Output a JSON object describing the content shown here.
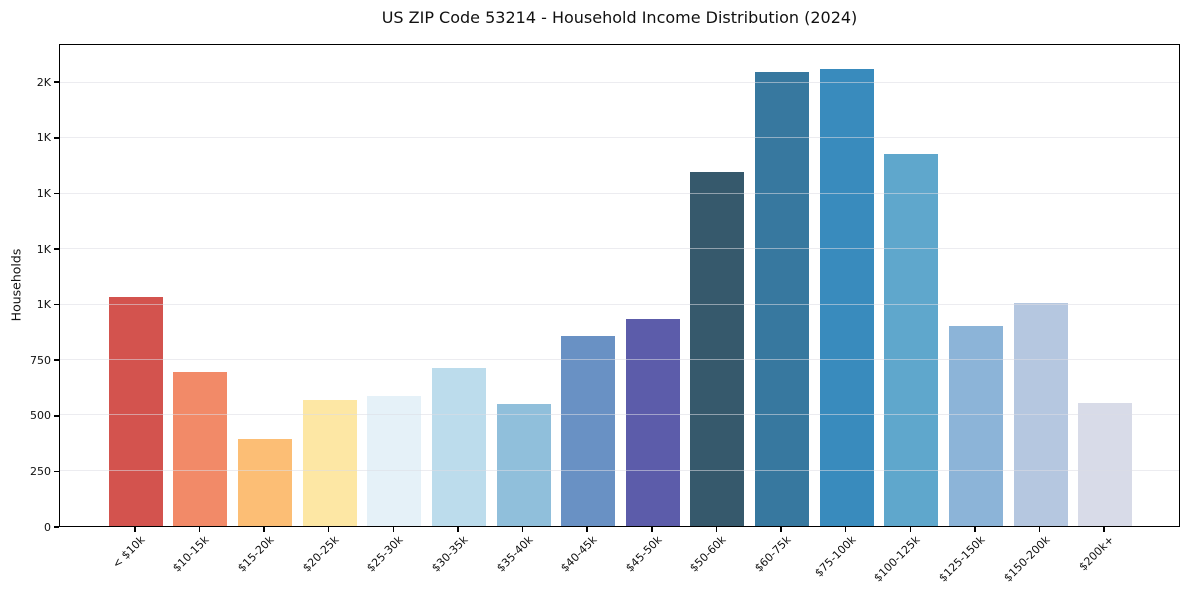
{
  "chart_data": {
    "type": "bar",
    "title": "US ZIP Code 53214 - Household Income Distribution (2024)",
    "xlabel": "",
    "ylabel": "Households",
    "categories": [
      "< $10k",
      "$10-15k",
      "$15-20k",
      "$20-25k",
      "$25-30k",
      "$30-35k",
      "$35-40k",
      "$40-45k",
      "$45-50k",
      "$50-60k",
      "$60-75k",
      "$75-100k",
      "$100-125k",
      "$125-150k",
      "$150-200k",
      "$200k+"
    ],
    "values": [
      1035,
      695,
      395,
      570,
      585,
      715,
      550,
      860,
      935,
      1600,
      2050,
      2065,
      1680,
      905,
      1005,
      555
    ],
    "bar_colors": [
      "#d3534e",
      "#f28a68",
      "#fcbe75",
      "#fde7a4",
      "#e5f1f8",
      "#bcdcec",
      "#90bfdb",
      "#6991c4",
      "#5c5caa",
      "#36596c",
      "#37789f",
      "#398bbd",
      "#5fa7cc",
      "#8cb4d8",
      "#b5c7e0",
      "#d8dbe8"
    ],
    "ylim": [
      0,
      2172
    ],
    "yticks": [
      {
        "value": 0,
        "label": "0"
      },
      {
        "value": 250,
        "label": "250"
      },
      {
        "value": 500,
        "label": "500"
      },
      {
        "value": 750,
        "label": "750"
      },
      {
        "value": 1000,
        "label": "1K"
      },
      {
        "value": 1250,
        "label": "1K"
      },
      {
        "value": 1500,
        "label": "1K"
      },
      {
        "value": 1750,
        "label": "1K"
      },
      {
        "value": 2000,
        "label": "2K"
      }
    ],
    "grid": "horizontal",
    "grid_color": "#dcdce4",
    "spine_color": "#000000",
    "background_color": "#ffffff",
    "legend": "none"
  }
}
